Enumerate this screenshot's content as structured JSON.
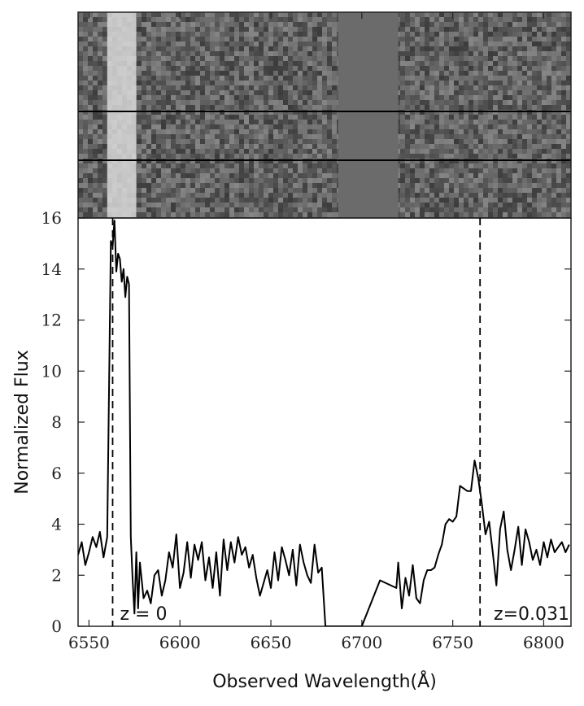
{
  "chart_data": {
    "type": "line",
    "title": "",
    "xlabel": "Observed Wavelength(Å)",
    "ylabel": "Normalized Flux",
    "xlim": [
      6544,
      6815
    ],
    "ylim": [
      0,
      16
    ],
    "xticks": [
      6550,
      6600,
      6650,
      6700,
      6750,
      6800
    ],
    "yticks": [
      0,
      2,
      4,
      6,
      8,
      10,
      12,
      14,
      16
    ],
    "grid": false,
    "legend": "none",
    "line_color": "#000000",
    "series": [
      {
        "x": [
          6544,
          6546,
          6548,
          6550,
          6552,
          6554,
          6556,
          6558,
          6560,
          6562,
          6563,
          6564,
          6565,
          6566,
          6567,
          6568,
          6569,
          6570,
          6571,
          6572,
          6573,
          6574,
          6575,
          6576,
          6577,
          6578,
          6580,
          6582,
          6584,
          6586,
          6588,
          6590,
          6592,
          6594,
          6596,
          6598,
          6600,
          6602,
          6604,
          6606,
          6608,
          6610,
          6612,
          6614,
          6616,
          6618,
          6620,
          6622,
          6624,
          6626,
          6628,
          6630,
          6632,
          6634,
          6636,
          6638,
          6640,
          6642,
          6644,
          6646,
          6648,
          6650,
          6652,
          6654,
          6656,
          6658,
          6660,
          6662,
          6664,
          6666,
          6668,
          6670,
          6672,
          6674,
          6676,
          6678,
          6680,
          6682,
          6684,
          6686,
          6687,
          6688,
          6700,
          6710,
          6719,
          6720,
          6722,
          6724,
          6726,
          6728,
          6730,
          6732,
          6734,
          6736,
          6738,
          6740,
          6742,
          6744,
          6746,
          6748,
          6750,
          6752,
          6754,
          6756,
          6758,
          6760,
          6762,
          6764,
          6766,
          6768,
          6770,
          6772,
          6774,
          6776,
          6778,
          6780,
          6782,
          6784,
          6786,
          6788,
          6790,
          6792,
          6794,
          6796,
          6798,
          6800,
          6802,
          6804,
          6806,
          6808,
          6810,
          6812,
          6814
        ],
        "y": [
          2.8,
          3.3,
          2.4,
          2.9,
          3.5,
          3.1,
          3.7,
          2.7,
          3.5,
          15.1,
          14.9,
          15.9,
          13.9,
          14.6,
          14.4,
          13.5,
          14.0,
          12.9,
          13.7,
          13.4,
          3.5,
          1.8,
          0.5,
          2.9,
          0.7,
          2.5,
          1.1,
          1.4,
          0.9,
          2.0,
          2.2,
          1.2,
          1.8,
          2.9,
          2.3,
          3.6,
          1.5,
          2.1,
          3.3,
          1.9,
          3.2,
          2.6,
          3.3,
          1.8,
          2.7,
          1.5,
          2.9,
          1.2,
          3.4,
          2.2,
          3.3,
          2.5,
          3.5,
          2.8,
          3.1,
          2.3,
          2.8,
          1.9,
          1.2,
          1.7,
          2.2,
          1.5,
          2.9,
          1.8,
          3.1,
          2.6,
          2.0,
          3.0,
          1.6,
          3.2,
          2.5,
          2.0,
          1.7,
          3.2,
          2.1,
          2.3,
          0.0,
          0.0,
          0.0,
          0.0,
          0.0,
          0.0,
          0.0,
          1.8,
          1.5,
          2.5,
          0.7,
          1.9,
          1.2,
          2.4,
          1.1,
          0.9,
          1.8,
          2.2,
          2.2,
          2.3,
          2.8,
          3.2,
          4.0,
          4.2,
          4.1,
          4.3,
          5.5,
          5.4,
          5.3,
          5.3,
          6.5,
          5.8,
          4.8,
          3.6,
          4.1,
          2.9,
          1.6,
          3.8,
          4.5,
          3.0,
          2.2,
          3.0,
          3.9,
          2.4,
          3.8,
          3.3,
          2.6,
          3.0,
          2.4,
          3.3,
          2.7,
          3.4,
          2.9,
          3.1,
          3.3,
          2.9,
          3.2
        ]
      }
    ],
    "markers": [
      {
        "x": 6563,
        "label": "z = 0"
      },
      {
        "x": 6765,
        "label": "z=0.031"
      }
    ],
    "spectrum_image": {
      "cutout_range": [
        6687,
        6720
      ],
      "cutout_color": "#6b6b6b",
      "noise_color": "#5a5a5a",
      "bright_line_range": [
        6560,
        6576
      ]
    }
  }
}
